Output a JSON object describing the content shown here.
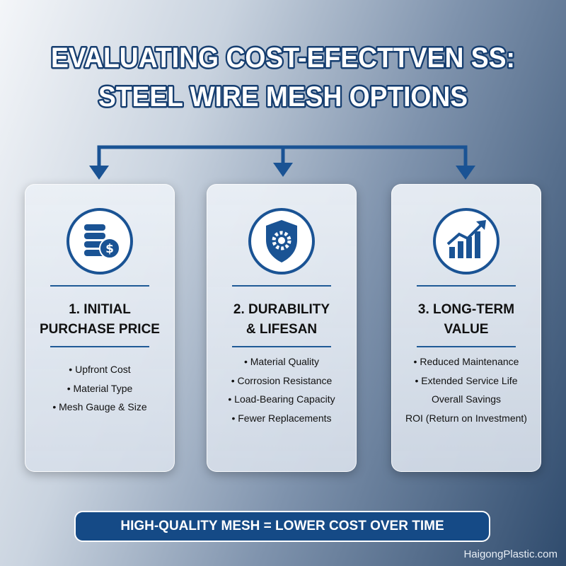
{
  "header": {
    "title": [
      "EVALUATING COST-EFECTTVEN SS:",
      "STEEL WIRE MESH OPTIONS"
    ]
  },
  "cards": [
    {
      "title": [
        "1. INITIAL",
        "PURCHASE PRICE"
      ],
      "items": [
        "• Upfront Cost",
        "• Material Type",
        "• Mesh Gauge & Size"
      ]
    },
    {
      "title": [
        "2. DURABILITY",
        "& LIFESAN"
      ],
      "items": [
        "• Material Quality",
        "• Corrosion Resistance",
        "• Load-Bearing Capacity",
        "• Fewer Replacements"
      ]
    },
    {
      "title": [
        "3. LONG-TERM",
        "VALUE"
      ],
      "items": [
        "• Reduced Maintenance",
        "• Extended Service Life",
        "Overall Savings",
        "ROI (Return on Investment)"
      ]
    }
  ],
  "banner": "HIGH-QUALITY MESH = LOWER COST OVER TIME",
  "watermark": "HaigongPlastic.com"
}
